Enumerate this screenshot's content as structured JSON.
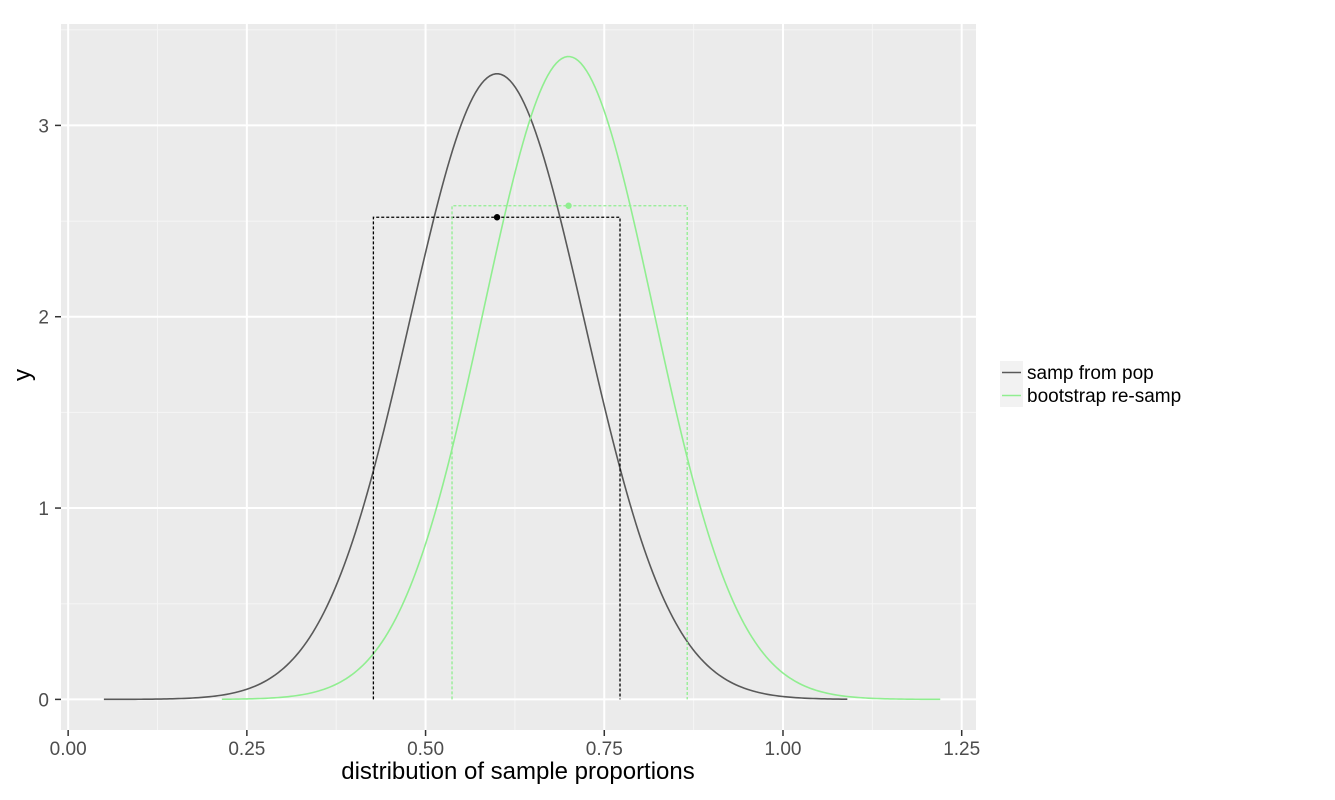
{
  "chart_data": {
    "type": "line",
    "title": "",
    "xlabel": "distribution of sample proportions",
    "ylabel": "y",
    "xlim": [
      -0.01,
      1.27
    ],
    "ylim": [
      -0.16,
      3.53
    ],
    "x_ticks": [
      0.0,
      0.25,
      0.5,
      0.75,
      1.0,
      1.25
    ],
    "x_tick_labels": [
      "0.00",
      "0.25",
      "0.50",
      "0.75",
      "1.00",
      "1.25"
    ],
    "y_ticks": [
      0,
      1,
      2,
      3
    ],
    "y_tick_labels": [
      "0",
      "1",
      "2",
      "3"
    ],
    "grid": true,
    "legend_position": "right",
    "series": [
      {
        "name": "samp from pop",
        "color": "#595959",
        "distribution": "normal",
        "mean": 0.6,
        "sd": 0.1219,
        "x_range": [
          0.05,
          1.09
        ],
        "peak_y": 3.27,
        "interval": {
          "lower": 0.427,
          "upper": 0.772,
          "height": 2.52,
          "center": 0.6,
          "color": "#000000"
        }
      },
      {
        "name": "bootstrap re-samp",
        "color": "#90ee90",
        "distribution": "normal",
        "mean": 0.7,
        "sd": 0.1187,
        "x_range": [
          0.215,
          1.22
        ],
        "peak_y": 3.36,
        "interval": {
          "lower": 0.537,
          "upper": 0.866,
          "height": 2.58,
          "center": 0.7,
          "color": "#90ee90"
        }
      }
    ]
  },
  "colors": {
    "panel_background": "#ebebeb",
    "grid_major": "#ffffff",
    "grid_minor": "#f5f5f5",
    "tick_text": "#4d4d4d"
  }
}
